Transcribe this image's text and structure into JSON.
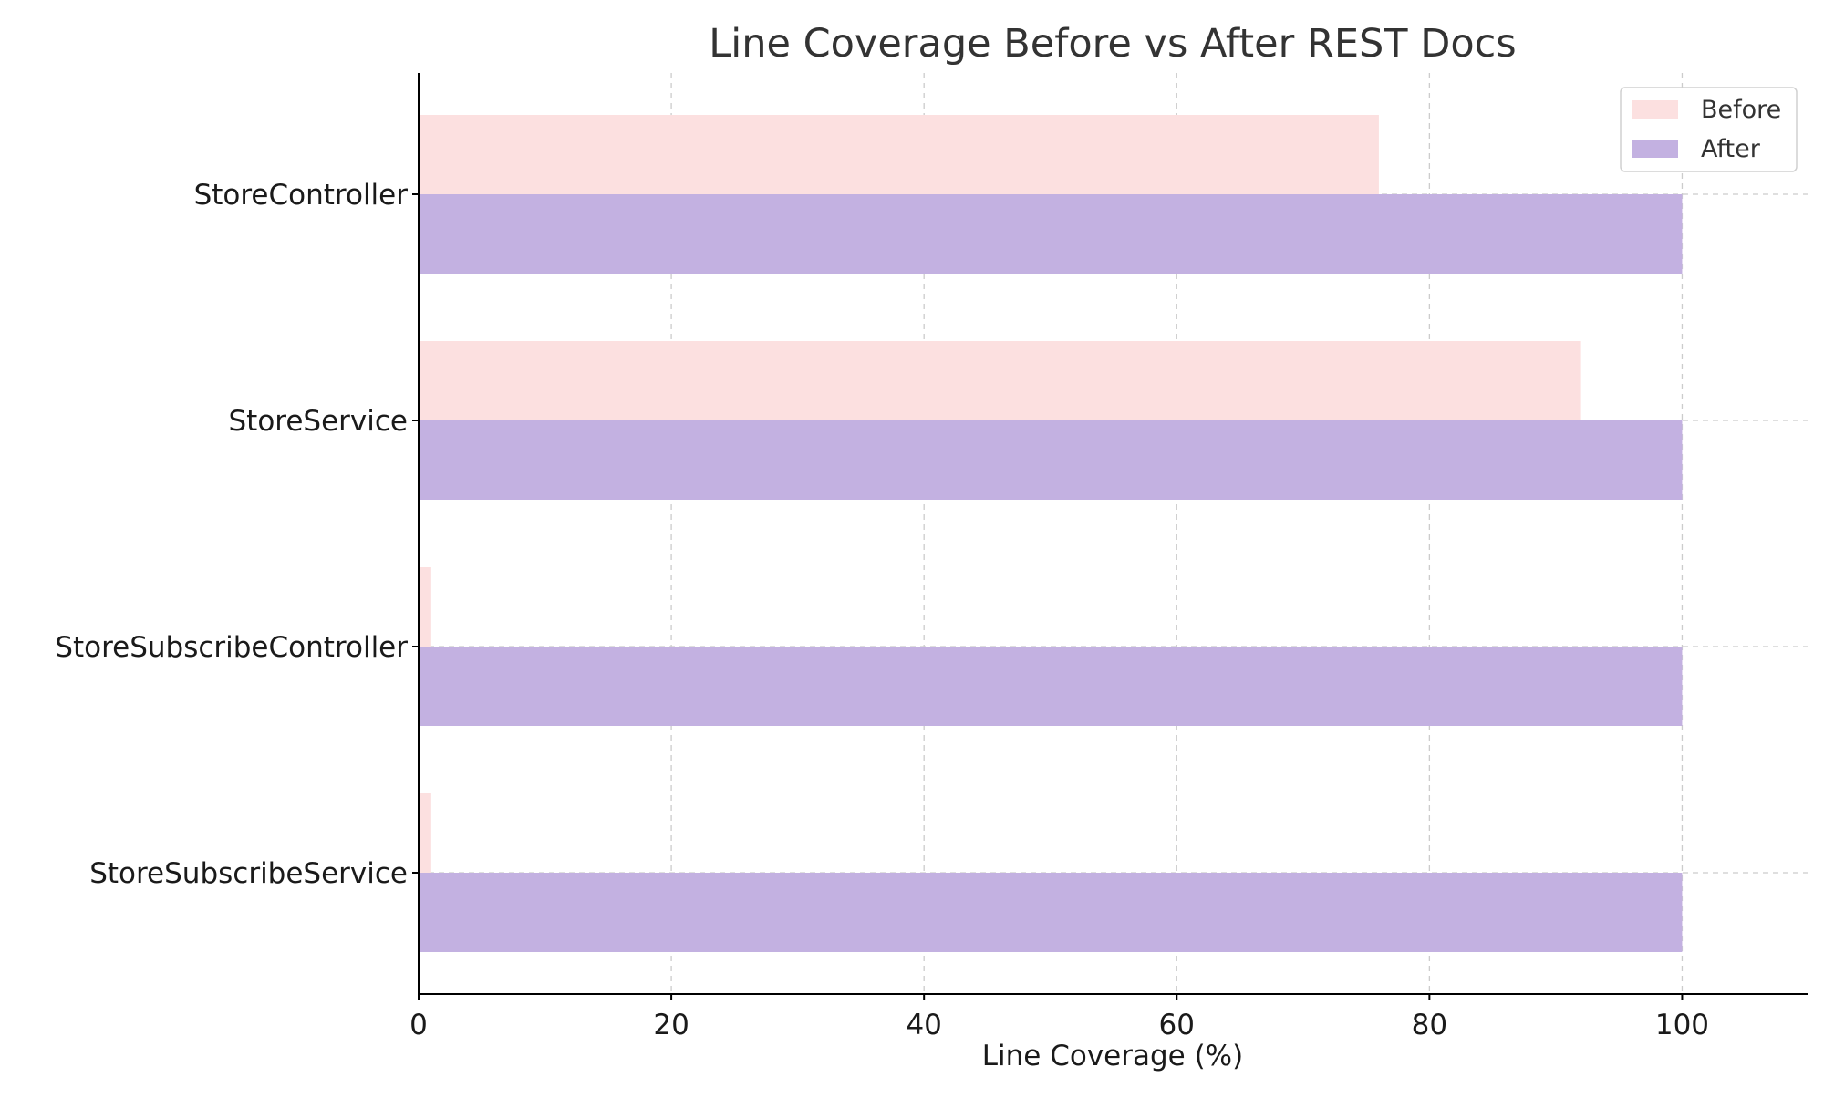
{
  "chart_data": {
    "type": "bar",
    "orientation": "horizontal",
    "title": "Line Coverage Before vs After REST Docs",
    "xlabel": "Line Coverage (%)",
    "ylabel": "",
    "categories": [
      "StoreController",
      "StoreService",
      "StoreSubscribeController",
      "StoreSubscribeService"
    ],
    "series": [
      {
        "name": "Before",
        "values": [
          76,
          92,
          1,
          1
        ],
        "color": "#fce0e0"
      },
      {
        "name": "After",
        "values": [
          100,
          100,
          100,
          100
        ],
        "color": "#c3b1e1"
      }
    ],
    "xlim": [
      0,
      110
    ],
    "xticks": [
      0,
      20,
      40,
      60,
      80,
      100
    ],
    "xtick_labels": [
      "0",
      "20",
      "40",
      "60",
      "80",
      "100"
    ],
    "grid": true,
    "legend_position": "top-right"
  }
}
